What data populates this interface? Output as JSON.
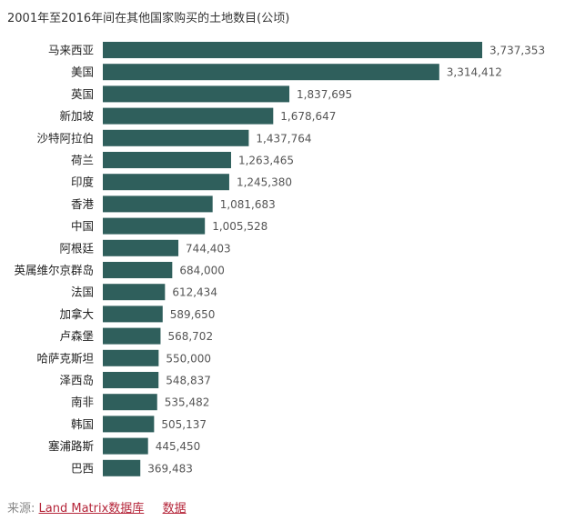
{
  "chart_data": {
    "type": "bar",
    "orientation": "horizontal",
    "title": "2001年至2016年间在其他国家购买的土地数目(公顷)",
    "xlabel": "",
    "ylabel": "",
    "xlim": [
      0,
      3737353
    ],
    "categories": [
      "马来西亚",
      "美国",
      "英国",
      "新加坡",
      "沙特阿拉伯",
      "荷兰",
      "印度",
      "香港",
      "中国",
      "阿根廷",
      "英属维尔京群岛",
      "法国",
      "加拿大",
      "卢森堡",
      "哈萨克斯坦",
      "泽西岛",
      "南非",
      "韩国",
      "塞浦路斯",
      "巴西"
    ],
    "values": [
      3737353,
      3314412,
      1837695,
      1678647,
      1437764,
      1263465,
      1245380,
      1081683,
      1005528,
      744403,
      684000,
      612434,
      589650,
      568702,
      550000,
      548837,
      535482,
      505137,
      445450,
      369483
    ],
    "value_labels": [
      "3,737,353",
      "3,314,412",
      "1,837,695",
      "1,678,647",
      "1,437,764",
      "1,263,465",
      "1,245,380",
      "1,081,683",
      "1,005,528",
      "744,403",
      "684,000",
      "612,434",
      "589,650",
      "568,702",
      "550,000",
      "548,837",
      "535,482",
      "505,137",
      "445,450",
      "369,483"
    ],
    "bar_color": "#2f5f5c"
  },
  "footer": {
    "source_label": "来源:",
    "source_link": "Land Matrix数据库",
    "data_link": "数据"
  }
}
